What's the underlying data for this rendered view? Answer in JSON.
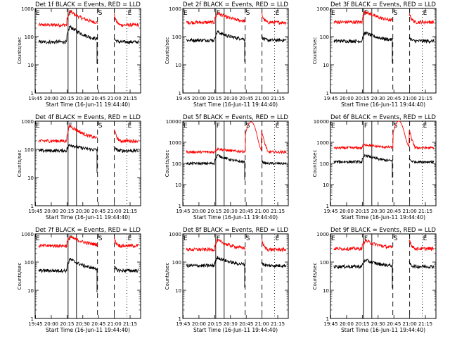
{
  "chart_data": {
    "type": "line",
    "xlabel": "Start Time (16-Jun-11 19:44:40)",
    "ylabel": "Counts/sec",
    "x_range": [
      "19:44:40",
      "21:25:00"
    ],
    "x_tick_labels": [
      "19:45",
      "20:00",
      "20:15",
      "20:30",
      "20:45",
      "21:00",
      "21:15"
    ],
    "y_scale": "log",
    "y_tick_labels": [
      "1",
      "10",
      "100",
      "1000"
    ],
    "event_markers": [
      {
        "label": "E",
        "time": "19:44:40",
        "line": "dotted"
      },
      {
        "label": "F",
        "time": "20:16:00",
        "line": "solid"
      },
      {
        "label": "",
        "time": "20:24:00",
        "line": "solid"
      },
      {
        "label": "S",
        "time": "20:44:00",
        "line": "dashed"
      },
      {
        "label": "",
        "time": "21:00:00",
        "line": "dashed"
      },
      {
        "label": "E",
        "time": "21:12:00",
        "line": "dotted"
      }
    ],
    "legend_colors": {
      "events": "#000000",
      "lld": "#ff0000"
    },
    "panels": [
      {
        "title": "Det 1f BLACK = Events, RED = LLD",
        "ylim": [
          1,
          1000
        ],
        "events_level": 65,
        "lld_level": 260,
        "flare_events": 230,
        "flare_lld": 800,
        "saa_peak": 1000
      },
      {
        "title": "Det 2f BLACK = Events, RED = LLD",
        "ylim": [
          1,
          1000
        ],
        "events_level": 75,
        "lld_level": 320,
        "flare_events": 150,
        "flare_lld": 700,
        "saa_peak": 1000
      },
      {
        "title": "Det 3f BLACK = Events, RED = LLD",
        "ylim": [
          1,
          1000
        ],
        "events_level": 70,
        "lld_level": 330,
        "flare_events": 140,
        "flare_lld": 800,
        "saa_peak": 1000
      },
      {
        "title": "Det 4f BLACK = Events, RED = LLD",
        "ylim": [
          1,
          1000
        ],
        "events_level": 90,
        "lld_level": 200,
        "flare_events": 150,
        "flare_lld": 700,
        "saa_peak": 1000
      },
      {
        "title": "Det 5f BLACK = Events, RED = LLD",
        "ylim": [
          1,
          10000
        ],
        "events_level": 100,
        "lld_level": 350,
        "flare_events": 250,
        "flare_lld": 500,
        "saa_peak": 9000
      },
      {
        "title": "Det 6f BLACK = Events, RED = LLD",
        "ylim": [
          1,
          10000
        ],
        "events_level": 120,
        "lld_level": 550,
        "flare_events": 250,
        "flare_lld": 800,
        "saa_peak": 9500
      },
      {
        "title": "Det 7f BLACK = Events, RED = LLD",
        "ylim": [
          1,
          1000
        ],
        "events_level": 50,
        "lld_level": 380,
        "flare_events": 130,
        "flare_lld": 800,
        "saa_peak": 1000
      },
      {
        "title": "Det 8f BLACK = Events, RED = LLD",
        "ylim": [
          1,
          1000
        ],
        "events_level": 75,
        "lld_level": 280,
        "flare_events": 150,
        "flare_lld": 600,
        "saa_peak": 1000
      },
      {
        "title": "Det 9f BLACK = Events, RED = LLD",
        "ylim": [
          1,
          1000
        ],
        "events_level": 70,
        "lld_level": 300,
        "flare_events": 120,
        "flare_lld": 600,
        "saa_peak": 1000
      }
    ]
  }
}
